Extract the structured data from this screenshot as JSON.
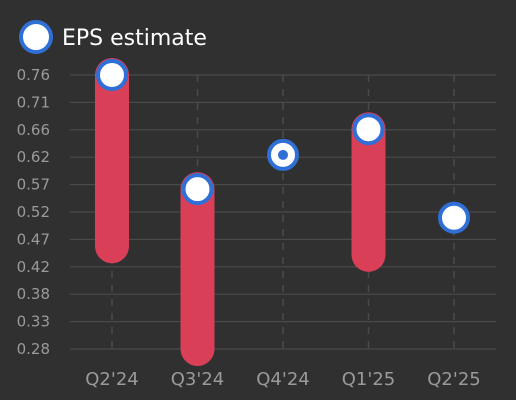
{
  "chart_data": {
    "type": "range-bar-dot",
    "legend": {
      "label": "EPS estimate",
      "position": "top-left"
    },
    "categories": [
      "Q2'24",
      "Q3'24",
      "Q4'24",
      "Q1'25",
      "Q2'25"
    ],
    "series": [
      {
        "name": "EPS estimate",
        "values": [
          0.76,
          0.56,
          0.62,
          0.665,
          0.51
        ]
      }
    ],
    "ranges": [
      {
        "low": 0.46,
        "high": 0.76
      },
      {
        "low": 0.28,
        "high": 0.56
      },
      null,
      {
        "low": 0.445,
        "high": 0.665
      },
      null
    ],
    "dot_marker_category": "Q4'24",
    "y_ticks": [
      "0.28",
      "0.33",
      "0.38",
      "0.42",
      "0.47",
      "0.52",
      "0.57",
      "0.62",
      "0.66",
      "0.71",
      "0.76"
    ],
    "ylim": [
      0.28,
      0.76
    ],
    "grid": {
      "horizontal": true,
      "vertical_dashed": true
    },
    "colors": {
      "background": "#303030",
      "grid": "#4a4a4a",
      "range_bar": "#d93f57",
      "marker_fill": "#ffffff",
      "marker_stroke": "#2f6fd6",
      "text": "#9a9a9a",
      "legend_text": "#ffffff"
    }
  }
}
